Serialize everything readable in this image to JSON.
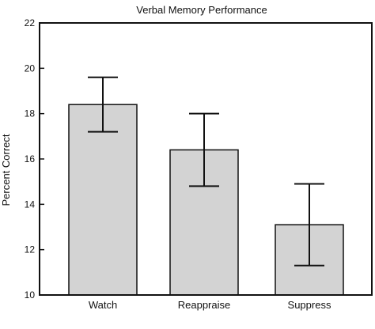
{
  "chart_data": {
    "type": "bar",
    "title": "Verbal Memory Performance",
    "xlabel": "",
    "ylabel": "Percent Correct",
    "categories": [
      "Watch",
      "Reappraise",
      "Suppress"
    ],
    "values": [
      18.4,
      16.4,
      13.1
    ],
    "error_low": [
      17.2,
      14.8,
      11.3
    ],
    "error_high": [
      19.6,
      18.0,
      14.9
    ],
    "ylim": [
      10,
      22
    ],
    "yticks": [
      10,
      12,
      14,
      16,
      18,
      20,
      22
    ],
    "grid": false,
    "bar_color": "#d3d3d3"
  }
}
